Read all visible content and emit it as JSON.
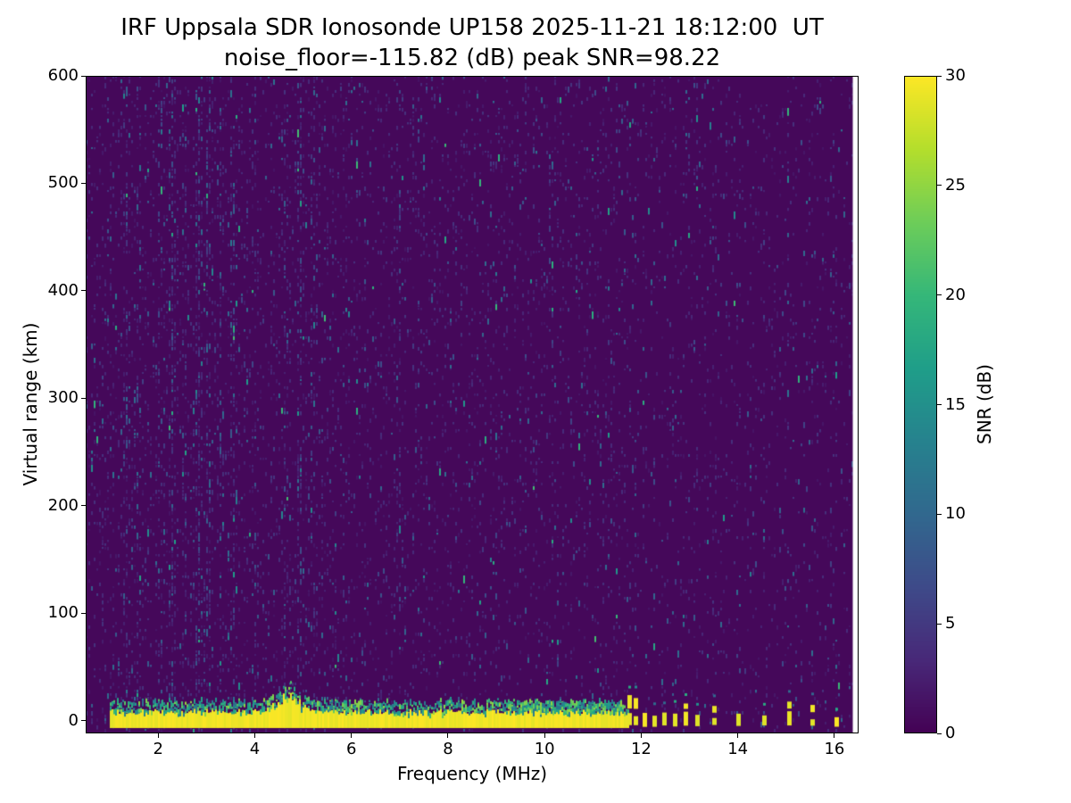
{
  "title_line1": "IRF Uppsala SDR Ionosonde UP158 2025-11-21 18:12:00  UT",
  "title_line2": "noise_floor=-115.82 (dB) peak SNR=98.22",
  "chart_data": {
    "type": "heatmap",
    "title": "IRF Uppsala SDR Ionosonde UP158 2025-11-21 18:12:00  UT",
    "subtitle": "noise_floor=-115.82 (dB) peak SNR=98.22",
    "station": "IRF Uppsala SDR Ionosonde UP158",
    "timestamp_ut": "2025-11-21 18:12:00",
    "noise_floor_db": -115.82,
    "peak_snr_db": 98.22,
    "xlabel": "Frequency (MHz)",
    "ylabel": "Virtual range (km)",
    "xlim": [
      0.5,
      16.5
    ],
    "ylim": [
      -12,
      600
    ],
    "x_ticks": [
      2,
      4,
      6,
      8,
      10,
      12,
      14,
      16
    ],
    "y_ticks": [
      0,
      100,
      200,
      300,
      400,
      500,
      600
    ],
    "grid": false,
    "colorbar": {
      "label": "SNR (dB)",
      "min": 0,
      "max": 30,
      "ticks": [
        0,
        5,
        10,
        15,
        20,
        25,
        30
      ],
      "colormap": "viridis"
    },
    "features": {
      "background_snr_db": 1,
      "data_x_end_mhz": 16.38,
      "speckle_seed": 42,
      "ground_return": {
        "description": "strong continuous echo band near 0 km virtual range",
        "freq_start_mhz": 1.0,
        "freq_end_mhz": 11.72,
        "km_bottom": -7,
        "km_top": 7,
        "snr_db": 30,
        "fringe_km_top": 18,
        "fringe_boost": {
          "f0": 9.2,
          "f1": 11.6,
          "extra": 3
        },
        "bump": {
          "center_mhz": 4.7,
          "width_mhz": 0.35,
          "extra_km": 18
        }
      },
      "pulse_freqs_mhz": [
        11.75,
        11.88,
        12.07,
        12.27,
        12.47,
        12.69,
        12.91,
        13.16,
        13.51,
        14.01,
        14.54,
        15.05,
        15.54,
        16.04
      ],
      "noise_streaks": [
        {
          "f": 1.35,
          "s": 0.5,
          "w": 0.06
        },
        {
          "f": 1.6,
          "s": 0.35,
          "w": 0.05
        },
        {
          "f": 2.05,
          "s": 0.45,
          "w": 0.05
        },
        {
          "f": 2.3,
          "s": 0.7,
          "w": 0.06
        },
        {
          "f": 2.55,
          "s": 0.4,
          "w": 0.05
        },
        {
          "f": 2.85,
          "s": 0.85,
          "w": 0.07
        },
        {
          "f": 3.05,
          "s": 0.6,
          "w": 0.05
        },
        {
          "f": 3.3,
          "s": 0.4,
          "w": 0.05
        },
        {
          "f": 3.55,
          "s": 0.55,
          "w": 0.06
        },
        {
          "f": 4.0,
          "s": 0.25,
          "w": 0.05
        },
        {
          "f": 4.65,
          "s": 0.45,
          "w": 0.06
        },
        {
          "f": 4.95,
          "s": 0.5,
          "w": 0.06
        },
        {
          "f": 5.2,
          "s": 0.4,
          "w": 0.05
        },
        {
          "f": 6.3,
          "s": 0.2,
          "w": 0.05
        },
        {
          "f": 7.0,
          "s": 0.3,
          "w": 0.06
        },
        {
          "f": 7.4,
          "s": 0.2,
          "w": 0.05
        },
        {
          "f": 9.0,
          "s": 0.18,
          "w": 0.05
        },
        {
          "f": 10.2,
          "s": 0.15,
          "w": 0.05
        }
      ]
    }
  }
}
